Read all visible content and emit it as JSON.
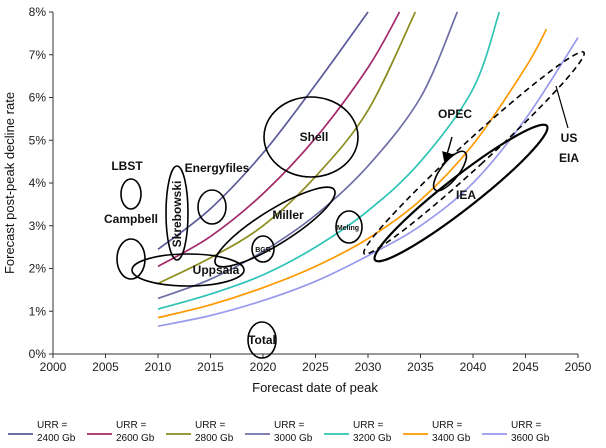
{
  "chart_data": {
    "type": "line",
    "xlabel": "Forecast date of peak",
    "ylabel": "Forecast post-peak decline rate",
    "xlim": [
      2000,
      2050
    ],
    "ylim": [
      0,
      8
    ],
    "x_ticks": [
      "2000",
      "2005",
      "2010",
      "2015",
      "2020",
      "2025",
      "2030",
      "2035",
      "2040",
      "2045",
      "2050"
    ],
    "y_ticks": [
      "0%",
      "1%",
      "2%",
      "3%",
      "4%",
      "5%",
      "6%",
      "7%",
      "8%"
    ],
    "grid": false,
    "legend_position": "bottom",
    "series": [
      {
        "name_line1": "URR =",
        "name_line2": "2400 Gb",
        "color": "#5a5a9a",
        "x": [
          2010,
          2015,
          2020,
          2025,
          2030
        ],
        "y": [
          2.45,
          3.4,
          4.7,
          6.3,
          8.0
        ]
      },
      {
        "name_line1": "URR =",
        "name_line2": "2600 Gb",
        "color": "#a3286a",
        "x": [
          2010,
          2015,
          2020,
          2025,
          2030,
          2033
        ],
        "y": [
          2.05,
          2.75,
          3.75,
          5.05,
          6.7,
          8.0
        ]
      },
      {
        "name_line1": "URR =",
        "name_line2": "2800 Gb",
        "color": "#8c8c1e",
        "x": [
          2010,
          2015,
          2020,
          2025,
          2030,
          2034.5
        ],
        "y": [
          1.65,
          2.25,
          3.0,
          4.15,
          5.7,
          8.0
        ]
      },
      {
        "name_line1": "URR =",
        "name_line2": "3000 Gb",
        "color": "#6f6fa8",
        "x": [
          2010,
          2015,
          2020,
          2025,
          2030,
          2035,
          2038.5
        ],
        "y": [
          1.3,
          1.75,
          2.4,
          3.25,
          4.4,
          6.0,
          8.0
        ]
      },
      {
        "name_line1": "URR =",
        "name_line2": "3200 Gb",
        "color": "#2ec4b6",
        "x": [
          2010,
          2015,
          2020,
          2025,
          2030,
          2035,
          2040,
          2042.5
        ],
        "y": [
          1.05,
          1.4,
          1.85,
          2.5,
          3.35,
          4.5,
          6.2,
          8.0
        ]
      },
      {
        "name_line1": "URR =",
        "name_line2": "3400 Gb",
        "color": "#ff9900",
        "x": [
          2010,
          2015,
          2020,
          2025,
          2030,
          2035,
          2040,
          2045,
          2047
        ],
        "y": [
          0.85,
          1.15,
          1.55,
          2.05,
          2.7,
          3.6,
          4.9,
          6.7,
          7.6
        ]
      },
      {
        "name_line1": "URR =",
        "name_line2": "3600 Gb",
        "color": "#9999ee",
        "x": [
          2010,
          2015,
          2020,
          2025,
          2030,
          2035,
          2040,
          2045,
          2050
        ],
        "y": [
          0.65,
          0.9,
          1.25,
          1.7,
          2.3,
          3.0,
          4.0,
          5.5,
          7.4
        ]
      }
    ],
    "annotations": [
      {
        "label": "LBST",
        "x": 2007.5,
        "y": 3.75
      },
      {
        "label": "Campbell",
        "x": 2007.5,
        "y": 3.1
      },
      {
        "label": "Skrebowski",
        "x": 2012,
        "y": 3.2
      },
      {
        "label": "Energyfiles",
        "x": 2016.3,
        "y": 4.4
      },
      {
        "label": "Shell",
        "x": 2025,
        "y": 5.05
      },
      {
        "label": "Miller",
        "x": 2022,
        "y": 3.2
      },
      {
        "label": "BGR",
        "x": 2020,
        "y": 2.45
      },
      {
        "label": "Meling",
        "x": 2028.3,
        "y": 2.95
      },
      {
        "label": "Uppsala",
        "x": 2014,
        "y": 2.0
      },
      {
        "label": "Total",
        "x": 2020,
        "y": 0.3
      },
      {
        "label": "OPEC",
        "x": 2038.3,
        "y": 5.5
      },
      {
        "label": "IEA",
        "x": 2040.5,
        "y": 3.75
      },
      {
        "label": "US",
        "x": 2047.8,
        "y": 5.0
      },
      {
        "label": "EIA",
        "x": 2047.8,
        "y": 4.55
      }
    ]
  }
}
